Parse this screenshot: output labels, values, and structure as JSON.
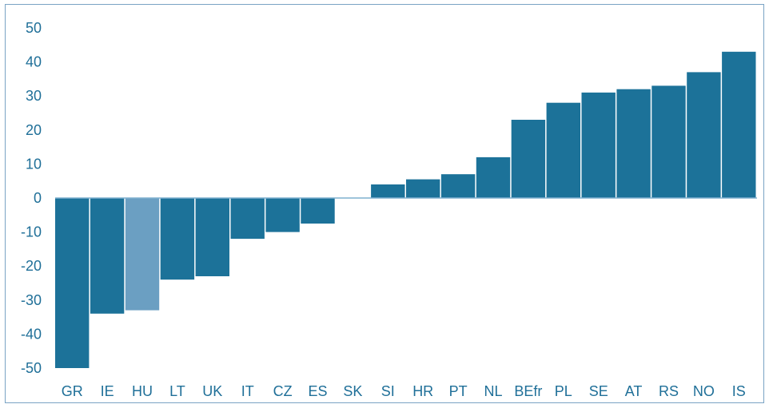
{
  "chart_data": {
    "type": "bar",
    "title": "",
    "xlabel": "",
    "ylabel": "",
    "ylim": [
      -50,
      50
    ],
    "yticks": [
      50,
      40,
      30,
      20,
      10,
      0,
      -10,
      -20,
      -30,
      -40,
      -50
    ],
    "grid": false,
    "legend": "none",
    "categories": [
      "GR",
      "IE",
      "HU",
      "LT",
      "UK",
      "IT",
      "CZ",
      "ES",
      "SK",
      "SI",
      "HR",
      "PT",
      "NL",
      "BEfr",
      "PL",
      "SE",
      "AT",
      "RS",
      "NO",
      "IS"
    ],
    "values": [
      -50,
      -34,
      -33,
      -24,
      -23,
      -12,
      -10,
      -7.5,
      0,
      4,
      5.5,
      7,
      12,
      23,
      28,
      31,
      32,
      33,
      37,
      43
    ],
    "highlight_category": "HU",
    "colors": {
      "bar": "#1c7299",
      "highlight": "#6b9fc2",
      "axis_text": "#1f6f98",
      "zero_line": "#7fb0cf",
      "frame": "#7aa3c4"
    }
  }
}
